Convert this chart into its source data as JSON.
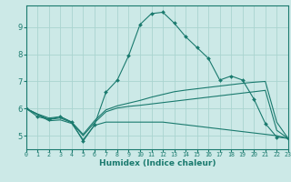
{
  "title": "",
  "xlabel": "Humidex (Indice chaleur)",
  "xlim": [
    0,
    23
  ],
  "ylim": [
    4.5,
    9.8
  ],
  "xticks": [
    0,
    1,
    2,
    3,
    4,
    5,
    6,
    7,
    8,
    9,
    10,
    11,
    12,
    13,
    14,
    15,
    16,
    17,
    18,
    19,
    20,
    21,
    22,
    23
  ],
  "yticks": [
    5,
    6,
    7,
    8,
    9
  ],
  "background_color": "#cce9e7",
  "grid_color": "#aad4d0",
  "line_color": "#1a7a6e",
  "lines": [
    {
      "x": [
        0,
        1,
        2,
        3,
        4,
        5,
        6,
        7,
        8,
        9,
        10,
        11,
        12,
        13,
        14,
        15,
        16,
        17,
        18,
        19,
        20,
        21,
        22,
        23
      ],
      "y": [
        6.0,
        5.7,
        5.6,
        5.7,
        5.5,
        4.8,
        5.4,
        6.6,
        7.05,
        7.95,
        9.1,
        9.5,
        9.55,
        9.15,
        8.65,
        8.25,
        7.85,
        7.05,
        7.2,
        7.05,
        6.35,
        5.45,
        4.95,
        4.9
      ],
      "marker": "D",
      "markersize": 2.0
    },
    {
      "x": [
        0,
        1,
        2,
        3,
        4,
        5,
        6,
        7,
        8,
        9,
        10,
        11,
        12,
        13,
        14,
        15,
        16,
        17,
        18,
        19,
        20,
        21,
        22,
        23
      ],
      "y": [
        6.0,
        5.8,
        5.65,
        5.7,
        5.5,
        5.05,
        5.55,
        5.95,
        6.1,
        6.2,
        6.3,
        6.42,
        6.52,
        6.62,
        6.68,
        6.73,
        6.78,
        6.83,
        6.88,
        6.93,
        6.97,
        7.0,
        5.5,
        4.9
      ],
      "marker": null,
      "markersize": 0
    },
    {
      "x": [
        0,
        1,
        2,
        3,
        4,
        5,
        6,
        7,
        8,
        9,
        10,
        11,
        12,
        13,
        14,
        15,
        16,
        17,
        18,
        19,
        20,
        21,
        22,
        23
      ],
      "y": [
        6.0,
        5.78,
        5.6,
        5.65,
        5.48,
        5.0,
        5.48,
        5.88,
        6.02,
        6.08,
        6.12,
        6.17,
        6.22,
        6.27,
        6.32,
        6.37,
        6.42,
        6.47,
        6.52,
        6.57,
        6.62,
        6.67,
        5.2,
        4.9
      ],
      "marker": null,
      "markersize": 0
    },
    {
      "x": [
        0,
        1,
        2,
        3,
        4,
        5,
        6,
        7,
        8,
        9,
        10,
        11,
        12,
        13,
        14,
        15,
        16,
        17,
        18,
        19,
        20,
        21,
        22,
        23
      ],
      "y": [
        6.0,
        5.78,
        5.55,
        5.58,
        5.45,
        4.85,
        5.38,
        5.5,
        5.5,
        5.5,
        5.5,
        5.5,
        5.5,
        5.45,
        5.4,
        5.35,
        5.3,
        5.25,
        5.2,
        5.15,
        5.1,
        5.05,
        5.0,
        4.9
      ],
      "marker": null,
      "markersize": 0
    }
  ]
}
